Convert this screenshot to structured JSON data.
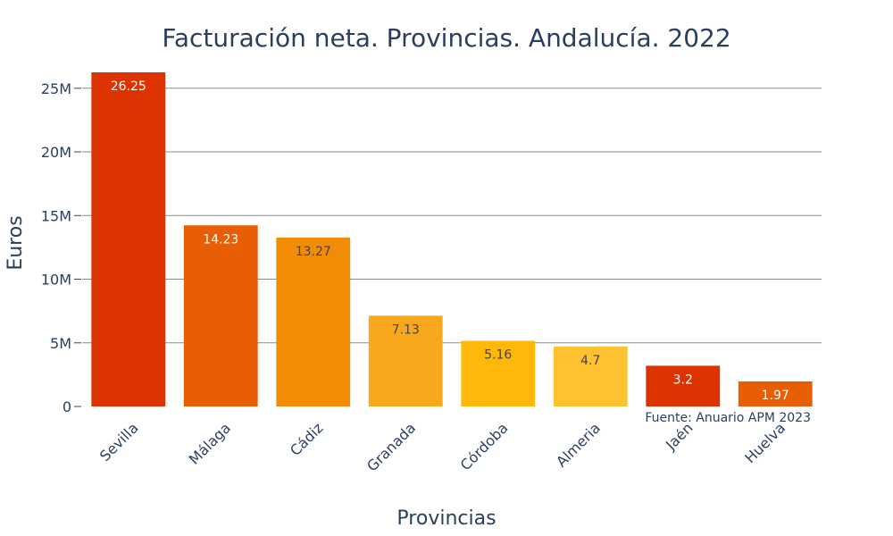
{
  "chart_data": {
    "type": "bar",
    "title": "Facturación neta. Provincias. Andalucía. 2022",
    "xlabel": "Provincias",
    "ylabel": "Euros",
    "categories": [
      "Sevilla",
      "Málaga",
      "Cádiz",
      "Granada",
      "Córdoba",
      "Almeria",
      "Jaén",
      "Huelva"
    ],
    "values": [
      26.25,
      14.23,
      13.27,
      7.13,
      5.16,
      4.7,
      3.2,
      1.97
    ],
    "value_labels": [
      "26.25",
      "14.23",
      "13.27",
      "7.13",
      "5.16",
      "4.7",
      "3.2",
      "1.97"
    ],
    "value_unit": "M",
    "ylim": [
      0,
      26.25
    ],
    "yticks": [
      0,
      5,
      10,
      15,
      20,
      25
    ],
    "ytick_labels": [
      "0",
      "5M",
      "10M",
      "15M",
      "20M",
      "25M"
    ],
    "colors": [
      "#dc3300",
      "#e75e05",
      "#f28c06",
      "#f9a71c",
      "#fdb80b",
      "#fec231",
      "#dc3300",
      "#e75e05"
    ],
    "label_colors": [
      "#ffffff",
      "#ffffff",
      "#444444",
      "#444444",
      "#444444",
      "#444444",
      "#ffffff",
      "#ffffff"
    ],
    "grid": true,
    "annotation": "Fuente: Anuario APM 2023"
  }
}
